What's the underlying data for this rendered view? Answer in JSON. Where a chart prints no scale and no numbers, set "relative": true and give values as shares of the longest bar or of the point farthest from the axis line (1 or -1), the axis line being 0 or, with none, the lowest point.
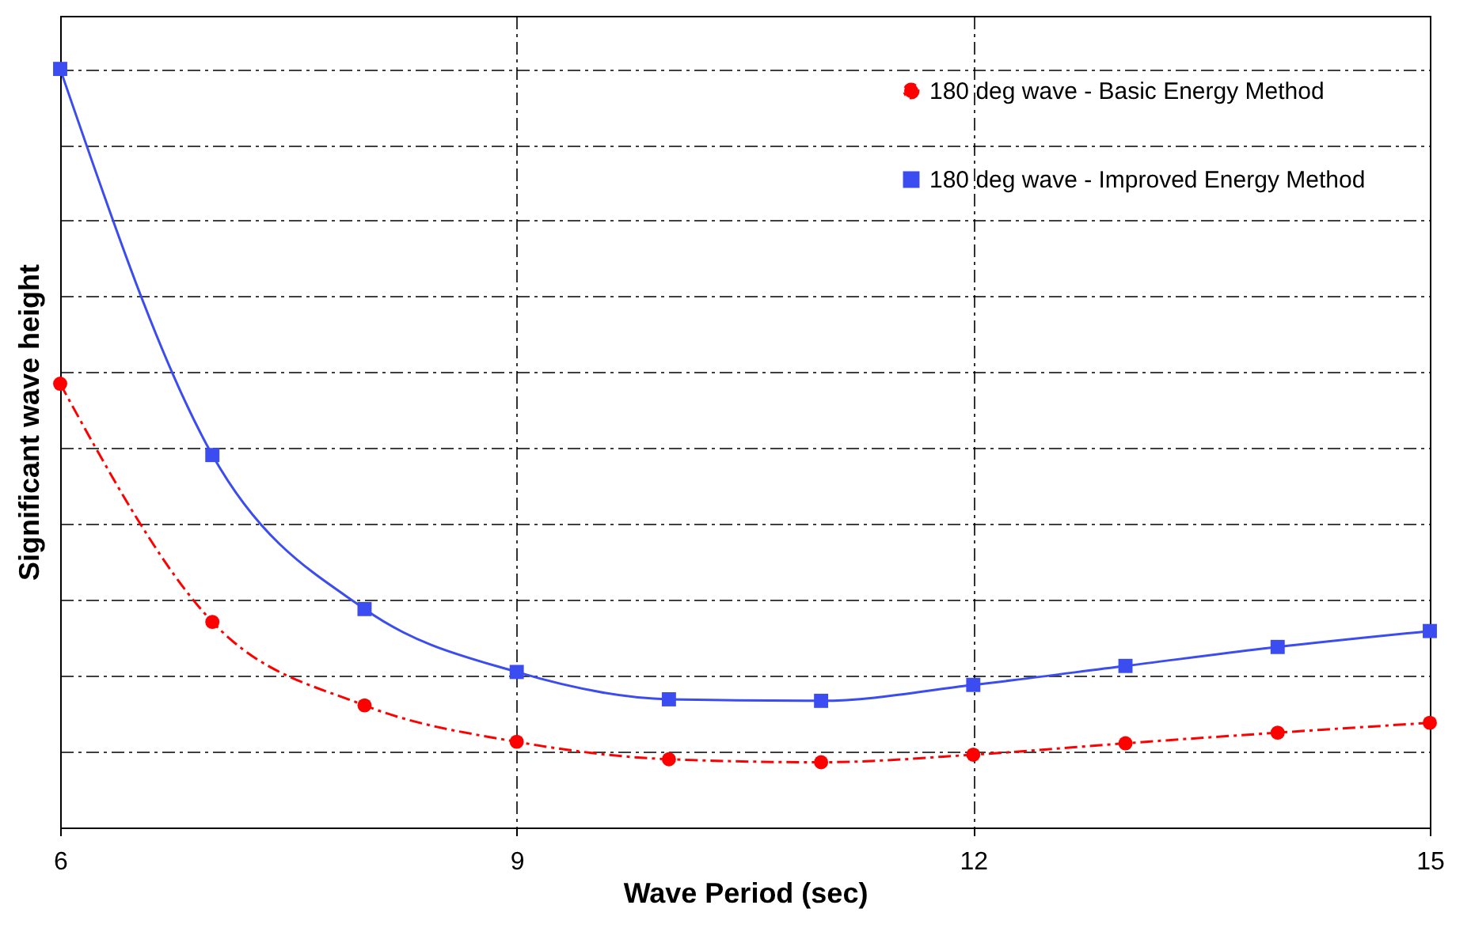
{
  "chart_data": {
    "type": "line",
    "relative": true,
    "xlabel": "Wave Period (sec)",
    "ylabel": "Significant wave height",
    "x": [
      6,
      7,
      8,
      9,
      10,
      11,
      12,
      13,
      14,
      15
    ],
    "xlim": [
      6,
      15
    ],
    "xticks": [
      6,
      9,
      12,
      15
    ],
    "grid": true,
    "legend": "top right",
    "series": [
      {
        "name": "180 deg wave - Basic Energy Method",
        "color": "#ff0000",
        "marker": "circle",
        "line_style": "dashed",
        "values": [
          0.585,
          0.271,
          0.161,
          0.113,
          0.09,
          0.086,
          0.096,
          0.111,
          0.125,
          0.138
        ]
      },
      {
        "name": "180 deg wave - Improved Energy Method",
        "color": "#3b4cf0",
        "marker": "square",
        "line_style": "solid",
        "values": [
          1,
          0.491,
          0.288,
          0.205,
          0.169,
          0.167,
          0.188,
          0.213,
          0.238,
          0.259
        ]
      }
    ]
  }
}
